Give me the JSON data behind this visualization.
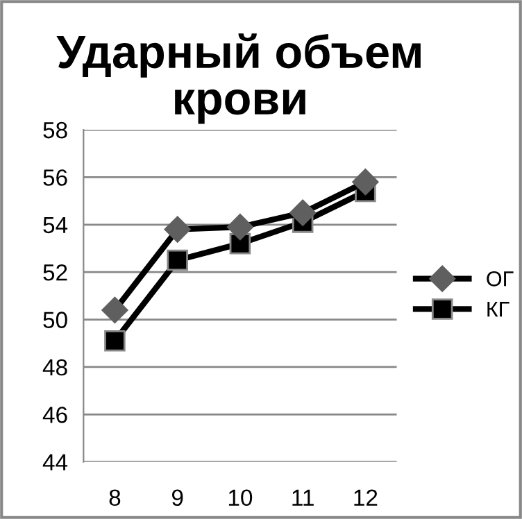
{
  "chart_data": {
    "type": "line",
    "title": "Ударный объем\nкрови",
    "categories": [
      "8",
      "9",
      "10",
      "11",
      "12"
    ],
    "series": [
      {
        "name": "ОГ",
        "color": "#5f5f5f",
        "marker": "diamond",
        "values": [
          50.4,
          53.8,
          53.9,
          54.5,
          55.8
        ]
      },
      {
        "name": "КГ",
        "color": "#000000",
        "marker": "square",
        "values": [
          49.1,
          52.5,
          53.2,
          54.1,
          55.4
        ]
      }
    ],
    "ylim": [
      44,
      58
    ],
    "yticks": [
      44,
      46,
      48,
      50,
      52,
      54,
      56,
      58
    ],
    "grid": "y",
    "legend": "right",
    "line_style": "solid"
  }
}
